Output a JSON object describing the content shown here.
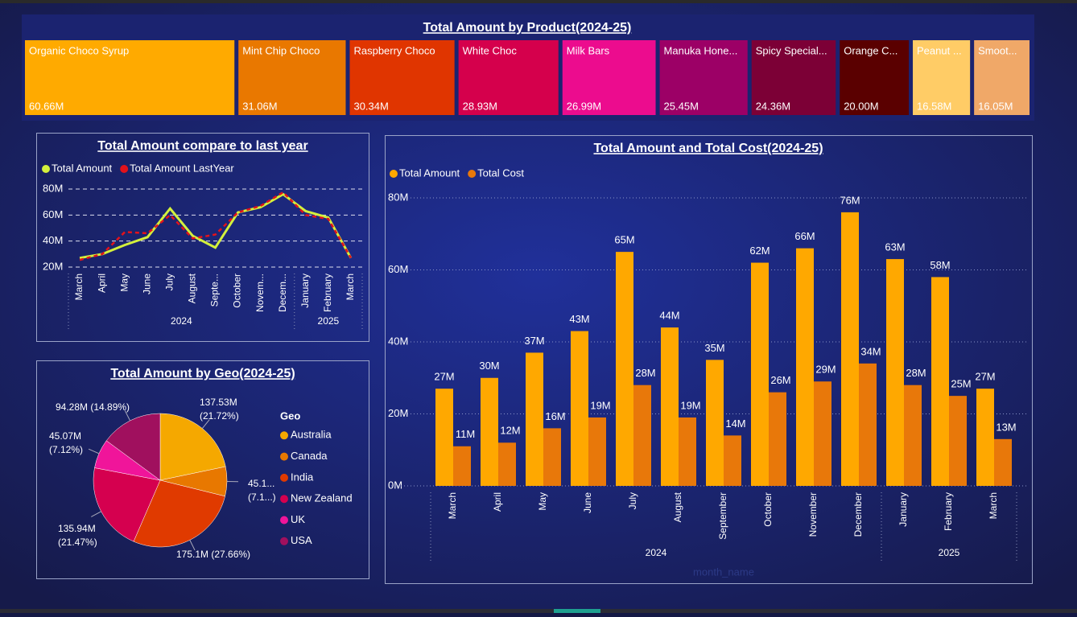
{
  "chart_data": [
    {
      "type": "treemap",
      "title": "Total Amount by Product(2024-25)",
      "categories": [
        "Organic Choco Syrup",
        "Mint Chip Choco",
        "Raspberry Choco",
        "White Choc",
        "Milk Bars",
        "Manuka Hone...",
        "Spicy Special...",
        "Orange C...",
        "Peanut ...",
        "Smoot..."
      ],
      "values": [
        60660000,
        31060000,
        30340000,
        28930000,
        26990000,
        25450000,
        24360000,
        20000000,
        16580000,
        16050000
      ],
      "value_labels": [
        "60.66M",
        "31.06M",
        "30.34M",
        "28.93M",
        "26.99M",
        "25.45M",
        "24.36M",
        "20.00M",
        "16.58M",
        "16.05M"
      ],
      "colors": [
        "#ffaa00",
        "#e97800",
        "#e03500",
        "#d5004c",
        "#ec0c8e",
        "#9c0066",
        "#7c0036",
        "#5a0000",
        "#ffcc66",
        "#f0a868"
      ]
    },
    {
      "type": "line",
      "title": "Total Amount compare to last year",
      "groups": [
        {
          "name": "2024",
          "categories": [
            "March",
            "April",
            "May",
            "June",
            "July",
            "August",
            "Septe...",
            "October",
            "Novem...",
            "Decem..."
          ]
        },
        {
          "name": "2025",
          "categories": [
            "January",
            "February",
            "March"
          ]
        }
      ],
      "series": [
        {
          "name": "Total Amount",
          "color": "#d4f03c",
          "values": [
            27000000,
            30000000,
            37000000,
            43000000,
            65000000,
            44000000,
            35000000,
            62000000,
            66000000,
            76000000,
            63000000,
            58000000,
            27000000
          ]
        },
        {
          "name": "Total Amount LastYear",
          "color": "#e3121b",
          "dashed": true,
          "values": [
            25500000,
            30000000,
            47000000,
            46000000,
            60000000,
            42000000,
            45000000,
            62000000,
            67000000,
            77500000,
            60000000,
            57000000,
            27000000
          ]
        }
      ],
      "ylim": [
        20000000,
        80000000
      ],
      "yticks": [
        {
          "value": 20000000,
          "label": "20M"
        },
        {
          "value": 40000000,
          "label": "40M"
        },
        {
          "value": 60000000,
          "label": "60M"
        },
        {
          "value": 80000000,
          "label": "80M"
        }
      ],
      "grid": true
    },
    {
      "type": "pie",
      "title": "Total Amount by Geo(2024-25)",
      "legend_title": "Geo",
      "categories": [
        "Australia",
        "Canada",
        "India",
        "New Zealand",
        "UK",
        "USA"
      ],
      "values": [
        137530000,
        45100000,
        175100000,
        135940000,
        45070000,
        94280000
      ],
      "value_labels": [
        "137.53M (21.72%)",
        "45.1... (7.1...)",
        "175.1M (27.66%)",
        "135.94M (21.47%)",
        "45.07M (7.12%)",
        "94.28M (14.89%)"
      ],
      "colors": [
        "#f5a800",
        "#e87800",
        "#e03a00",
        "#d5004f",
        "#f0159a",
        "#a0105e"
      ]
    },
    {
      "type": "bar",
      "title": "Total Amount and Total Cost(2024-25)",
      "x_label": "month_name",
      "groups": [
        {
          "name": "2024",
          "categories": [
            "March",
            "April",
            "May",
            "June",
            "July",
            "August",
            "September",
            "October",
            "November",
            "December"
          ]
        },
        {
          "name": "2025",
          "categories": [
            "January",
            "February",
            "March"
          ]
        }
      ],
      "series": [
        {
          "name": "Total Amount",
          "color": "#ffa800",
          "values": [
            27000000,
            30000000,
            37000000,
            43000000,
            65000000,
            44000000,
            35000000,
            62000000,
            66000000,
            76000000,
            63000000,
            58000000,
            27000000
          ],
          "value_labels": [
            "27M",
            "30M",
            "37M",
            "43M",
            "65M",
            "44M",
            "35M",
            "62M",
            "66M",
            "76M",
            "63M",
            "58M",
            "27M"
          ]
        },
        {
          "name": "Total Cost",
          "color": "#e8780a",
          "values": [
            11000000,
            12000000,
            16000000,
            19000000,
            28000000,
            19000000,
            14000000,
            26000000,
            29000000,
            34000000,
            28000000,
            25000000,
            13000000
          ],
          "value_labels": [
            "11M",
            "12M",
            "16M",
            "19M",
            "28M",
            "19M",
            "14M",
            "26M",
            "29M",
            "34M",
            "28M",
            "25M",
            "13M"
          ]
        }
      ],
      "ylim": [
        0,
        80000000
      ],
      "yticks": [
        {
          "value": 0,
          "label": "0M"
        },
        {
          "value": 20000000,
          "label": "20M"
        },
        {
          "value": 40000000,
          "label": "40M"
        },
        {
          "value": 60000000,
          "label": "60M"
        },
        {
          "value": 80000000,
          "label": "80M"
        }
      ],
      "grid": true
    }
  ]
}
